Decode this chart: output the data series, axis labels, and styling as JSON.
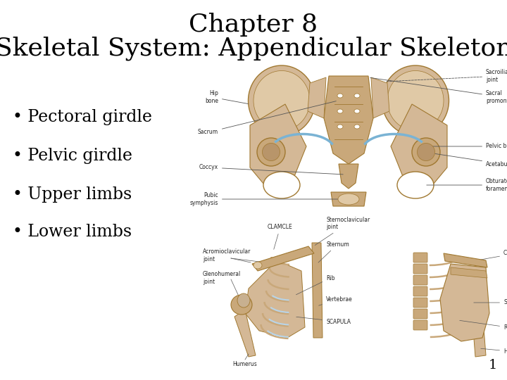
{
  "title_line1": "Chapter 8",
  "title_line2": "Skeletal System: Appendicular Skeleton",
  "bullets": [
    "• Pectoral girdle",
    "• Pelvic girdle",
    "• Upper limbs",
    "• Lower limbs"
  ],
  "page_number": "1",
  "background_color": "#ffffff",
  "text_color": "#000000",
  "title_fontsize": 26,
  "bullet_fontsize": 17,
  "page_num_fontsize": 14,
  "bone_fill": "#d4b896",
  "bone_fill2": "#c9a87a",
  "bone_fill3": "#e0c9a6",
  "bone_edge": "#a07830",
  "blue_color": "#7ab3d4",
  "label_color": "#222222",
  "label_fontsize": 5.5,
  "line_color": "#555555"
}
